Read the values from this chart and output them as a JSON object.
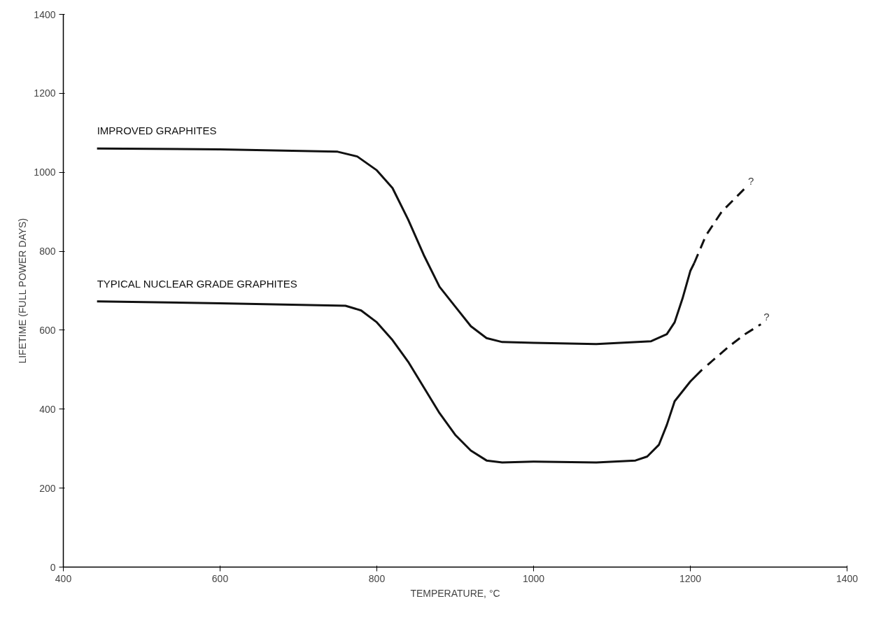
{
  "chart_data": {
    "type": "line",
    "xlabel": "TEMPERATURE, °C",
    "ylabel": "LIFETIME (FULL POWER DAYS)",
    "xlim": [
      400,
      1400
    ],
    "xticks": [
      400,
      600,
      800,
      1000,
      1200,
      1400
    ],
    "ylim": [
      0,
      1400
    ],
    "yticks": [
      0,
      200,
      400,
      600,
      800,
      1000,
      1200,
      1400
    ],
    "grid": false,
    "marker": "none",
    "series": [
      {
        "name": "IMPROVED GRAPHITES",
        "color": "#111111",
        "line_style": "solid",
        "x": [
          443,
          600,
          750,
          775,
          800,
          820,
          840,
          860,
          880,
          900,
          920,
          940,
          960,
          1000,
          1080,
          1150,
          1170,
          1180,
          1190,
          1200,
          1205
        ],
        "values": [
          1060,
          1058,
          1052,
          1040,
          1005,
          960,
          880,
          790,
          710,
          660,
          610,
          580,
          570,
          568,
          565,
          572,
          590,
          620,
          680,
          750,
          770
        ]
      },
      {
        "color": "#111111",
        "line_style": "dashed",
        "x": [
          1205,
          1220,
          1240,
          1260,
          1270
        ],
        "values": [
          770,
          840,
          900,
          940,
          960
        ]
      },
      {
        "name": "TYPICAL NUCLEAR GRADE GRAPHITES",
        "color": "#111111",
        "line_style": "solid",
        "x": [
          443,
          600,
          760,
          780,
          800,
          820,
          840,
          860,
          880,
          900,
          920,
          940,
          960,
          1000,
          1080,
          1130,
          1145,
          1160,
          1170,
          1180,
          1200,
          1215
        ],
        "values": [
          673,
          668,
          662,
          650,
          620,
          575,
          520,
          455,
          390,
          335,
          295,
          270,
          265,
          267,
          265,
          270,
          280,
          310,
          360,
          420,
          470,
          500
        ]
      },
      {
        "color": "#111111",
        "line_style": "dashed",
        "x": [
          1222,
          1250,
          1270,
          1290
        ],
        "values": [
          512,
          560,
          590,
          615
        ]
      }
    ],
    "annotations": [
      "?",
      "?"
    ]
  }
}
